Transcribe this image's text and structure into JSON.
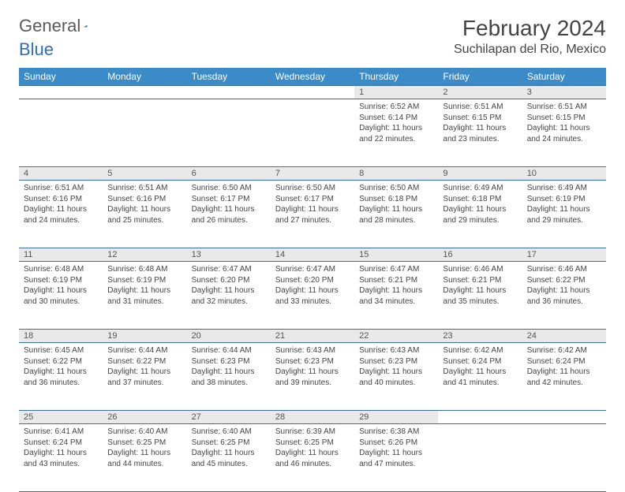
{
  "brand": {
    "part1": "General",
    "part2": "Blue"
  },
  "title": "February 2024",
  "location": "Suchilapan del Rio, Mexico",
  "colors": {
    "header_bg": "#3b8bc9",
    "header_text": "#ffffff",
    "daynum_bg": "#e9e9e9",
    "border": "#3b6fa0",
    "logo_gray": "#5a5a5a",
    "logo_blue": "#2f6fb3"
  },
  "weekdays": [
    "Sunday",
    "Monday",
    "Tuesday",
    "Wednesday",
    "Thursday",
    "Friday",
    "Saturday"
  ],
  "weeks": [
    [
      null,
      null,
      null,
      null,
      {
        "n": "1",
        "sr": "6:52 AM",
        "ss": "6:14 PM",
        "dl": "11 hours and 22 minutes."
      },
      {
        "n": "2",
        "sr": "6:51 AM",
        "ss": "6:15 PM",
        "dl": "11 hours and 23 minutes."
      },
      {
        "n": "3",
        "sr": "6:51 AM",
        "ss": "6:15 PM",
        "dl": "11 hours and 24 minutes."
      }
    ],
    [
      {
        "n": "4",
        "sr": "6:51 AM",
        "ss": "6:16 PM",
        "dl": "11 hours and 24 minutes."
      },
      {
        "n": "5",
        "sr": "6:51 AM",
        "ss": "6:16 PM",
        "dl": "11 hours and 25 minutes."
      },
      {
        "n": "6",
        "sr": "6:50 AM",
        "ss": "6:17 PM",
        "dl": "11 hours and 26 minutes."
      },
      {
        "n": "7",
        "sr": "6:50 AM",
        "ss": "6:17 PM",
        "dl": "11 hours and 27 minutes."
      },
      {
        "n": "8",
        "sr": "6:50 AM",
        "ss": "6:18 PM",
        "dl": "11 hours and 28 minutes."
      },
      {
        "n": "9",
        "sr": "6:49 AM",
        "ss": "6:18 PM",
        "dl": "11 hours and 29 minutes."
      },
      {
        "n": "10",
        "sr": "6:49 AM",
        "ss": "6:19 PM",
        "dl": "11 hours and 29 minutes."
      }
    ],
    [
      {
        "n": "11",
        "sr": "6:48 AM",
        "ss": "6:19 PM",
        "dl": "11 hours and 30 minutes."
      },
      {
        "n": "12",
        "sr": "6:48 AM",
        "ss": "6:19 PM",
        "dl": "11 hours and 31 minutes."
      },
      {
        "n": "13",
        "sr": "6:47 AM",
        "ss": "6:20 PM",
        "dl": "11 hours and 32 minutes."
      },
      {
        "n": "14",
        "sr": "6:47 AM",
        "ss": "6:20 PM",
        "dl": "11 hours and 33 minutes."
      },
      {
        "n": "15",
        "sr": "6:47 AM",
        "ss": "6:21 PM",
        "dl": "11 hours and 34 minutes."
      },
      {
        "n": "16",
        "sr": "6:46 AM",
        "ss": "6:21 PM",
        "dl": "11 hours and 35 minutes."
      },
      {
        "n": "17",
        "sr": "6:46 AM",
        "ss": "6:22 PM",
        "dl": "11 hours and 36 minutes."
      }
    ],
    [
      {
        "n": "18",
        "sr": "6:45 AM",
        "ss": "6:22 PM",
        "dl": "11 hours and 36 minutes."
      },
      {
        "n": "19",
        "sr": "6:44 AM",
        "ss": "6:22 PM",
        "dl": "11 hours and 37 minutes."
      },
      {
        "n": "20",
        "sr": "6:44 AM",
        "ss": "6:23 PM",
        "dl": "11 hours and 38 minutes."
      },
      {
        "n": "21",
        "sr": "6:43 AM",
        "ss": "6:23 PM",
        "dl": "11 hours and 39 minutes."
      },
      {
        "n": "22",
        "sr": "6:43 AM",
        "ss": "6:23 PM",
        "dl": "11 hours and 40 minutes."
      },
      {
        "n": "23",
        "sr": "6:42 AM",
        "ss": "6:24 PM",
        "dl": "11 hours and 41 minutes."
      },
      {
        "n": "24",
        "sr": "6:42 AM",
        "ss": "6:24 PM",
        "dl": "11 hours and 42 minutes."
      }
    ],
    [
      {
        "n": "25",
        "sr": "6:41 AM",
        "ss": "6:24 PM",
        "dl": "11 hours and 43 minutes."
      },
      {
        "n": "26",
        "sr": "6:40 AM",
        "ss": "6:25 PM",
        "dl": "11 hours and 44 minutes."
      },
      {
        "n": "27",
        "sr": "6:40 AM",
        "ss": "6:25 PM",
        "dl": "11 hours and 45 minutes."
      },
      {
        "n": "28",
        "sr": "6:39 AM",
        "ss": "6:25 PM",
        "dl": "11 hours and 46 minutes."
      },
      {
        "n": "29",
        "sr": "6:38 AM",
        "ss": "6:26 PM",
        "dl": "11 hours and 47 minutes."
      },
      null,
      null
    ]
  ],
  "labels": {
    "sunrise": "Sunrise:",
    "sunset": "Sunset:",
    "daylight": "Daylight:"
  }
}
